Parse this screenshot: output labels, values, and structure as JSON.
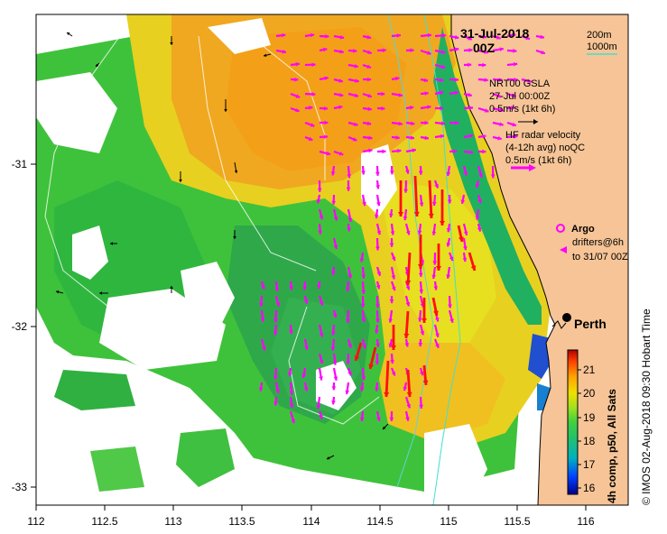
{
  "map": {
    "date_title": "31-Jul-2018",
    "time_title": "00Z",
    "contours": {
      "label_200": "200m",
      "label_1000": "1000m"
    },
    "gsla": {
      "line1": "NRT00 GSLA",
      "line2": "27-Jul 00:00Z",
      "line3": "0.5m/s (1kt 6h)"
    },
    "hf_radar": {
      "line1": "HF radar velocity",
      "line2": "(4-12h avg) noQC",
      "line3": "0.5m/s (1kt 6h)"
    },
    "argo_label": "Argo",
    "drifters": {
      "line1": "drifters@6h",
      "line2": "to 31/07 00Z"
    },
    "city_label": "Perth",
    "colorbar": {
      "label": "4h comp, p50, All Sats",
      "ticks": [
        "21",
        "20",
        "19",
        "18",
        "17",
        "16"
      ]
    },
    "credit": "© IMOS 02-Aug-2018 09:30 Hobart Time",
    "x_ticks": [
      "112",
      "112.5",
      "113",
      "113.5",
      "114",
      "114.5",
      "115",
      "115.5",
      "116"
    ],
    "y_ticks": [
      "-31",
      "-32",
      "-33"
    ],
    "colors": {
      "land": "#f6c496",
      "coastline": "#000000",
      "radar_arrows": "#ff00ff",
      "strong_arrows": "#ff0000",
      "contour_200": "#40e0d0",
      "contour_1000": "#5fd3d3"
    }
  }
}
